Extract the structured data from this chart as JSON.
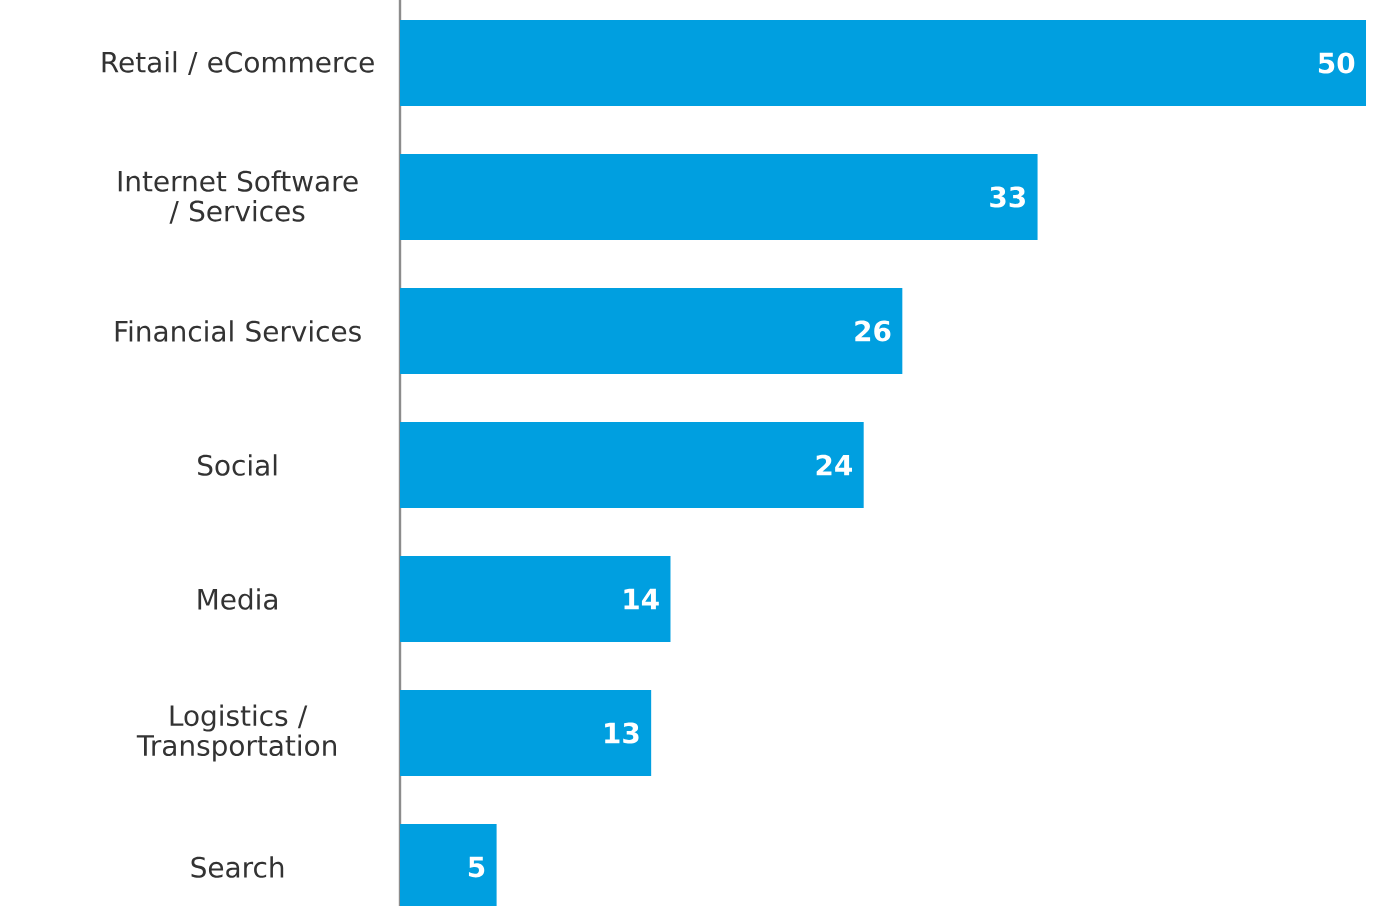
{
  "chart_data": {
    "type": "bar",
    "orientation": "horizontal",
    "categories": [
      "Retail / eCommerce",
      "Internet Software / Services",
      "Financial Services",
      "Social",
      "Media",
      "Logistics / Transportation",
      "Search"
    ],
    "values": [
      50,
      33,
      26,
      24,
      14,
      13,
      5
    ],
    "color": "#009fe0",
    "data_labels": true
  }
}
